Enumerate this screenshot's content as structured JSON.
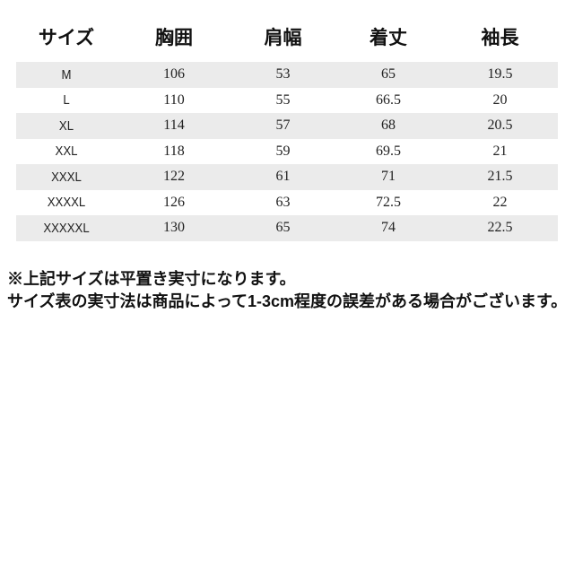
{
  "size_chart": {
    "columns": [
      "サイズ",
      "胸囲",
      "肩幅",
      "着丈",
      "袖長"
    ],
    "rows": [
      [
        "M",
        "106",
        "53",
        "65",
        "19.5"
      ],
      [
        "L",
        "110",
        "55",
        "66.5",
        "20"
      ],
      [
        "XL",
        "114",
        "57",
        "68",
        "20.5"
      ],
      [
        "XXL",
        "118",
        "59",
        "69.5",
        "21"
      ],
      [
        "XXXL",
        "122",
        "61",
        "71",
        "21.5"
      ],
      [
        "XXXXL",
        "126",
        "63",
        "72.5",
        "22"
      ],
      [
        "XXXXXL",
        "130",
        "65",
        "74",
        "22.5"
      ]
    ]
  },
  "notes": {
    "line1": "※上記サイズは平置き実寸になります。",
    "line2": "サイズ表の実寸法は商品によって1-3cm程度の誤差がある場合がございます。"
  },
  "colors": {
    "stripe": "#ebebeb",
    "text": "#1c1c1c"
  }
}
